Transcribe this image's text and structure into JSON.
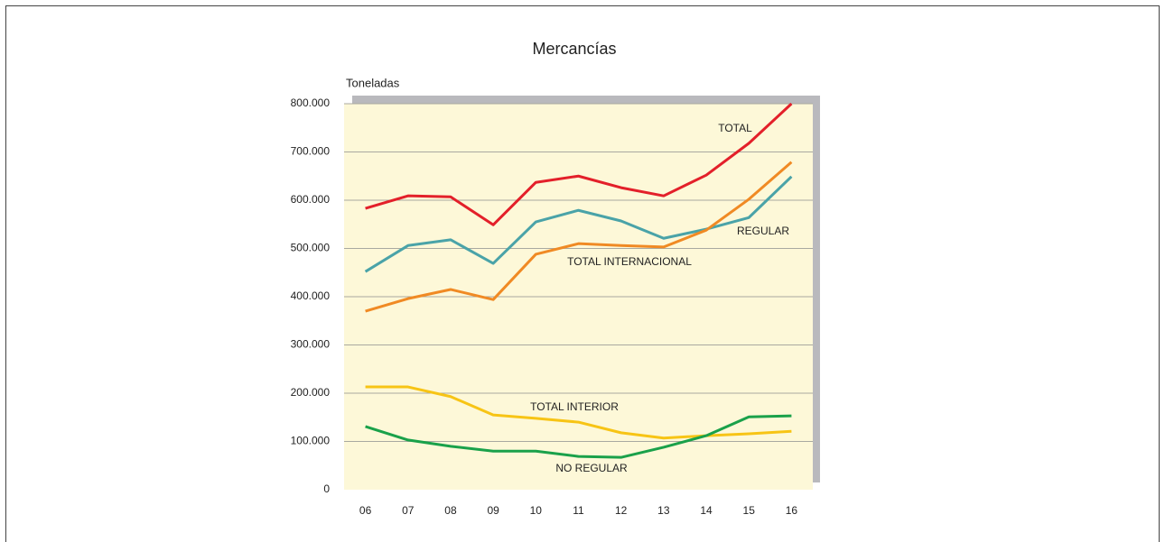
{
  "chart_data": {
    "type": "line",
    "title": "Mercancías",
    "y_label": "Toneladas",
    "categories": [
      "06",
      "07",
      "08",
      "09",
      "10",
      "11",
      "12",
      "13",
      "14",
      "15",
      "16"
    ],
    "series": [
      {
        "name": "TOTAL",
        "color": "#e3202a",
        "values": [
          583000,
          609000,
          607000,
          549000,
          637000,
          650000,
          626000,
          609000,
          652000,
          718000,
          800000
        ]
      },
      {
        "name": "REGULAR",
        "color": "#4aa3a8",
        "values": [
          452000,
          506000,
          518000,
          469000,
          555000,
          579000,
          557000,
          521000,
          540000,
          564000,
          649000
        ]
      },
      {
        "name": "TOTAL INTERNACIONAL",
        "color": "#f08a24",
        "values": [
          370000,
          396000,
          415000,
          394000,
          488000,
          510000,
          506000,
          503000,
          538000,
          602000,
          679000
        ]
      },
      {
        "name": "TOTAL INTERIOR",
        "color": "#f7c415",
        "values": [
          213000,
          213000,
          193000,
          155000,
          148000,
          140000,
          118000,
          107000,
          112000,
          116000,
          121000
        ]
      },
      {
        "name": "NO REGULAR",
        "color": "#1aa14a",
        "values": [
          131000,
          103000,
          90000,
          80000,
          80000,
          69000,
          67000,
          88000,
          112000,
          151000,
          153000
        ]
      }
    ],
    "ylim": [
      0,
      800000
    ],
    "yticks": [
      0,
      {
        "value": 100000,
        "label": "100.000"
      },
      {
        "value": 200000,
        "label": "200.000"
      },
      {
        "value": 300000,
        "label": "300.000"
      },
      {
        "value": 400000,
        "label": "400.000"
      },
      {
        "value": 500000,
        "label": "500.000"
      },
      {
        "value": 600000,
        "label": "600.000"
      },
      {
        "value": 700000,
        "label": "700.000"
      },
      {
        "value": 800000,
        "label": "800.000"
      }
    ],
    "grid": true
  }
}
